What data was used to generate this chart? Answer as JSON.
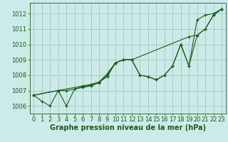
{
  "title": "Graphe pression niveau de la mer (hPa)",
  "background_color": "#cceae8",
  "grid_color": "#aacccc",
  "line_color": "#1a5c1a",
  "xlim": [
    -0.5,
    23.5
  ],
  "ylim": [
    1005.5,
    1012.7
  ],
  "yticks": [
    1006,
    1007,
    1008,
    1009,
    1010,
    1011,
    1012
  ],
  "xticks": [
    0,
    1,
    2,
    3,
    4,
    5,
    6,
    7,
    8,
    9,
    10,
    11,
    12,
    13,
    14,
    15,
    16,
    17,
    18,
    19,
    20,
    21,
    22,
    23
  ],
  "series": [
    {
      "x": [
        0,
        1,
        2,
        3,
        4,
        5,
        6,
        7,
        8,
        9,
        10,
        11,
        12,
        13,
        14,
        15,
        16,
        17,
        18,
        19,
        20,
        21,
        22,
        23
      ],
      "y": [
        1006.7,
        1006.3,
        1006.0,
        1007.0,
        1007.0,
        1007.1,
        1007.2,
        1007.3,
        1007.5,
        1008.0,
        1008.8,
        1009.0,
        1009.0,
        1008.0,
        1007.9,
        1007.7,
        1008.0,
        1008.6,
        1010.0,
        1008.6,
        1011.6,
        1011.9,
        1012.0,
        1012.3
      ]
    },
    {
      "x": [
        0,
        3,
        4,
        5,
        6,
        7,
        8,
        9,
        10,
        11,
        12,
        13,
        14,
        15,
        16,
        17,
        18,
        19,
        20,
        21,
        22,
        23
      ],
      "y": [
        1006.7,
        1007.0,
        1006.0,
        1007.1,
        1007.25,
        1007.35,
        1007.55,
        1007.9,
        1008.8,
        1009.0,
        1009.0,
        1008.0,
        1007.9,
        1007.7,
        1008.0,
        1008.6,
        1010.0,
        1008.6,
        1010.6,
        1011.0,
        1011.9,
        1012.3
      ]
    },
    {
      "x": [
        0,
        3,
        6,
        7,
        8,
        9,
        10,
        11,
        12,
        19,
        20,
        21,
        22,
        23
      ],
      "y": [
        1006.7,
        1007.0,
        1007.3,
        1007.4,
        1007.55,
        1008.1,
        1008.8,
        1009.0,
        1009.0,
        1010.5,
        1010.6,
        1011.0,
        1011.9,
        1012.3
      ]
    }
  ],
  "xlabel_fontsize": 7,
  "tick_fontsize": 6,
  "tick_label_color": "#1a5c1a"
}
